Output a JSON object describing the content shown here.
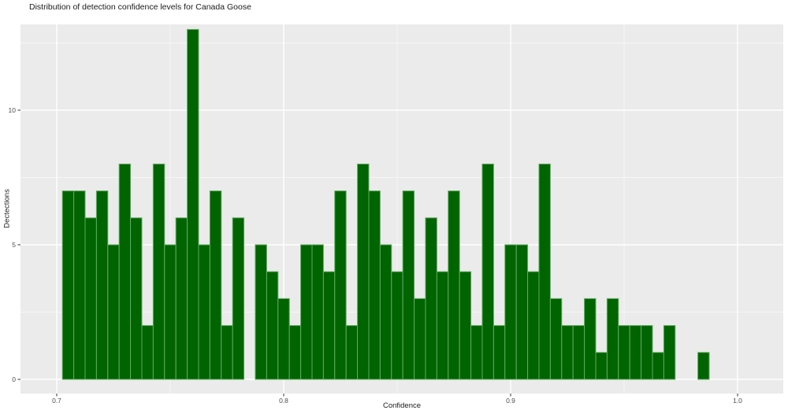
{
  "chart_data": {
    "type": "bar",
    "subtype": "histogram",
    "title": "Distribution of detection confidence levels for Canada Goose",
    "xlabel": "Confidence",
    "ylabel": "Dectections",
    "bin_width": 0.005,
    "bin_centers": [
      0.705,
      0.71,
      0.715,
      0.72,
      0.725,
      0.73,
      0.735,
      0.74,
      0.745,
      0.75,
      0.755,
      0.76,
      0.765,
      0.77,
      0.775,
      0.78,
      0.785,
      0.79,
      0.795,
      0.8,
      0.805,
      0.81,
      0.815,
      0.82,
      0.825,
      0.83,
      0.835,
      0.84,
      0.845,
      0.85,
      0.855,
      0.86,
      0.865,
      0.87,
      0.875,
      0.88,
      0.885,
      0.89,
      0.895,
      0.9,
      0.905,
      0.91,
      0.915,
      0.92,
      0.925,
      0.93,
      0.935,
      0.94,
      0.945,
      0.95,
      0.955,
      0.96,
      0.965,
      0.97,
      0.975,
      0.98,
      0.985
    ],
    "counts": [
      7,
      7,
      6,
      7,
      5,
      8,
      6,
      2,
      8,
      5,
      6,
      13,
      5,
      7,
      2,
      6,
      0,
      5,
      4,
      3,
      2,
      5,
      5,
      4,
      7,
      2,
      8,
      7,
      5,
      4,
      7,
      3,
      6,
      4,
      7,
      4,
      2,
      8,
      2,
      5,
      5,
      4,
      8,
      3,
      2,
      2,
      3,
      1,
      3,
      2,
      2,
      2,
      1,
      2,
      0,
      0,
      1
    ],
    "total_detections": 250,
    "x_axis": {
      "ticks": [
        0.7,
        0.8,
        0.9,
        1.0
      ],
      "tick_labels": [
        "0.7",
        "0.8",
        "0.9",
        "1.0"
      ],
      "minor_gridlines": [
        0.75,
        0.85,
        0.95
      ],
      "range_shown": [
        0.684,
        1.02
      ]
    },
    "y_axis": {
      "ticks": [
        0,
        5,
        10
      ],
      "tick_labels": [
        "0",
        "5",
        "10"
      ],
      "minor_gridlines": [
        2.5,
        7.5,
        12.5
      ],
      "range_shown": [
        -0.65,
        13.7
      ]
    },
    "grid": "major-and-minor",
    "legend": "none",
    "colors": {
      "bar_fill": "#006400",
      "bar_stroke": "#61a961",
      "panel_bg": "#ebebeb",
      "grid_major": "#ffffff",
      "grid_minor": "#f6f6f6",
      "tick_text": "#4d4d4d",
      "tick_mark": "#333333",
      "outer_bg": "#ffffff"
    }
  }
}
